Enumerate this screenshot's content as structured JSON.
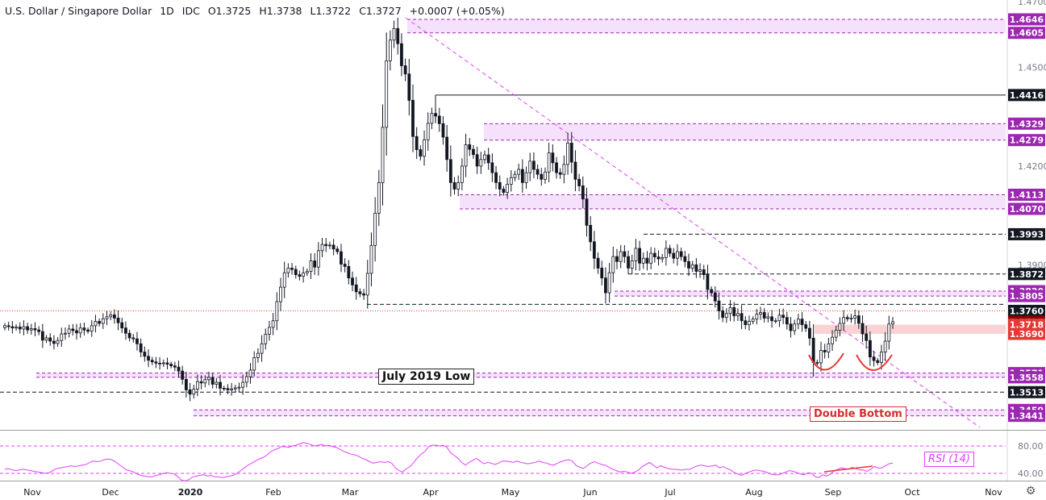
{
  "header": {
    "title": "U.S. Dollar / Singapore Dollar",
    "interval": "1D",
    "source": "IDC",
    "open": "O1.3725",
    "high": "H1.3738",
    "low": "L1.3722",
    "close": "C1.3727",
    "change": "+0.0007 (+0.05%)"
  },
  "chart_data": {
    "type": "candlestick",
    "price_axis": {
      "min": 1.34,
      "max": 1.47,
      "ticks": [
        "1.4700",
        "1.4500",
        "1.4200",
        "1.3900"
      ]
    },
    "time_axis": {
      "labels": [
        "Nov",
        "Dec",
        "2020",
        "Feb",
        "Mar",
        "Apr",
        "May",
        "Jun",
        "Jul",
        "Aug",
        "Sep",
        "Oct",
        "Nov"
      ]
    },
    "price_labels": [
      {
        "text": "1.4646",
        "value": 1.4646,
        "color": "#9c27b0"
      },
      {
        "text": "1.4605",
        "value": 1.4605,
        "color": "#9c27b0"
      },
      {
        "text": "1.4416",
        "value": 1.4416,
        "color": "#131722"
      },
      {
        "text": "1.4329",
        "value": 1.4329,
        "color": "#9c27b0"
      },
      {
        "text": "1.4279",
        "value": 1.4279,
        "color": "#9c27b0"
      },
      {
        "text": "1.4113",
        "value": 1.4113,
        "color": "#9c27b0"
      },
      {
        "text": "1.4070",
        "value": 1.407,
        "color": "#9c27b0"
      },
      {
        "text": "1.3993",
        "value": 1.3993,
        "color": "#131722"
      },
      {
        "text": "1.3872",
        "value": 1.3872,
        "color": "#131722"
      },
      {
        "text": "1.3820",
        "value": 1.382,
        "color": "#9c27b0"
      },
      {
        "text": "1.3805",
        "value": 1.3805,
        "color": "#9c27b0"
      },
      {
        "text": "1.3760",
        "value": 1.376,
        "color": "#131722"
      },
      {
        "text": "1.3727",
        "value": 1.3727,
        "color": "#8b0000"
      },
      {
        "text": "1.3718",
        "value": 1.3718,
        "color": "#e53935"
      },
      {
        "text": "1.3690",
        "value": 1.369,
        "color": "#e53935"
      },
      {
        "text": "1.3571",
        "value": 1.3571,
        "color": "#9c27b0"
      },
      {
        "text": "1.3558",
        "value": 1.3558,
        "color": "#9c27b0"
      },
      {
        "text": "1.3513",
        "value": 1.3513,
        "color": "#131722"
      },
      {
        "text": "1.3459",
        "value": 1.3459,
        "color": "#9c27b0"
      },
      {
        "text": "1.3441",
        "value": 1.3441,
        "color": "#9c27b0"
      }
    ],
    "closes": [
      1.3715,
      1.3712,
      1.3708,
      1.3711,
      1.3705,
      1.3712,
      1.3702,
      1.3706,
      1.3702,
      1.3697,
      1.3671,
      1.3678,
      1.3668,
      1.3661,
      1.367,
      1.369,
      1.3692,
      1.3705,
      1.37,
      1.3693,
      1.3708,
      1.3702,
      1.3698,
      1.3715,
      1.3728,
      1.3722,
      1.3736,
      1.3742,
      1.3748,
      1.3738,
      1.3724,
      1.3708,
      1.3692,
      1.3678,
      1.3675,
      1.366,
      1.3635,
      1.3622,
      1.361,
      1.3605,
      1.3601,
      1.36,
      1.3602,
      1.3598,
      1.3593,
      1.3589,
      1.3577,
      1.3552,
      1.352,
      1.3507,
      1.3522,
      1.3545,
      1.3541,
      1.3551,
      1.3558,
      1.3537,
      1.3543,
      1.3525,
      1.3524,
      1.352,
      1.3523,
      1.3526,
      1.3528,
      1.3543,
      1.356,
      1.358,
      1.3618,
      1.3631,
      1.366,
      1.3689,
      1.371,
      1.373,
      1.3788,
      1.3832,
      1.3876,
      1.389,
      1.3886,
      1.387,
      1.3865,
      1.3875,
      1.388,
      1.3912,
      1.3893,
      1.3943,
      1.3962,
      1.3958,
      1.396,
      1.3948,
      1.394,
      1.3902,
      1.3895,
      1.386,
      1.3839,
      1.3818,
      1.3812,
      1.3808,
      1.3874,
      1.3959,
      1.4057,
      1.415,
      1.4318,
      1.452,
      1.4583,
      1.4618,
      1.4572,
      1.4505,
      1.448,
      1.44,
      1.429,
      1.425,
      1.423,
      1.428,
      1.433,
      1.436,
      1.4352,
      1.4329,
      1.4288,
      1.422,
      1.415,
      1.413,
      1.415,
      1.42,
      1.4265,
      1.4251,
      1.4235,
      1.42,
      1.422,
      1.4234,
      1.421,
      1.418,
      1.415,
      1.413,
      1.412,
      1.4145,
      1.4165,
      1.4175,
      1.419,
      1.415,
      1.418,
      1.4215,
      1.419,
      1.4175,
      1.416,
      1.4182,
      1.424,
      1.421,
      1.418,
      1.4175,
      1.4205,
      1.427,
      1.4212,
      1.416,
      1.414,
      1.41,
      1.402,
      1.397,
      1.392,
      1.389,
      1.386,
      1.3815,
      1.3876,
      1.3925,
      1.391,
      1.394,
      1.3925,
      1.389,
      1.3912,
      1.395,
      1.3905,
      1.392,
      1.3905,
      1.3935,
      1.3924,
      1.3918,
      1.3922,
      1.395,
      1.3935,
      1.392,
      1.394,
      1.3925,
      1.391,
      1.389,
      1.39,
      1.388,
      1.3885,
      1.387,
      1.3825,
      1.3815,
      1.379,
      1.376,
      1.374,
      1.3752,
      1.377,
      1.3745,
      1.3752,
      1.373,
      1.3718,
      1.3728,
      1.3735,
      1.375,
      1.3755,
      1.3738,
      1.3742,
      1.373,
      1.373,
      1.3747,
      1.374,
      1.372,
      1.37,
      1.372,
      1.3735,
      1.3718,
      1.3707,
      1.3677,
      1.3603,
      1.3602,
      1.364,
      1.3635,
      1.366,
      1.368,
      1.3701,
      1.3722,
      1.374,
      1.3736,
      1.3738,
      1.3745,
      1.3722,
      1.369,
      1.367,
      1.362,
      1.3609,
      1.3603,
      1.3635,
      1.3668,
      1.372,
      1.3727
    ],
    "rsi": {
      "label": "RSI (14)",
      "levels": [
        80,
        40
      ],
      "tick_labels": [
        "80.00",
        "40.00"
      ],
      "values": [
        46,
        47,
        45,
        44,
        45,
        46,
        45,
        44,
        43,
        42,
        41,
        40,
        41,
        44,
        47,
        48,
        49,
        50,
        51,
        50,
        51,
        52,
        53,
        56,
        58,
        57,
        58,
        60,
        61,
        60,
        57,
        53,
        49,
        45,
        44,
        42,
        39,
        37,
        36,
        35,
        35,
        37,
        38,
        40,
        41,
        40,
        39,
        35,
        30,
        29,
        31,
        35,
        36,
        37,
        38,
        36,
        37,
        35,
        35,
        34,
        35,
        36,
        37,
        40,
        44,
        48,
        52,
        55,
        58,
        61,
        63,
        66,
        71,
        74,
        76,
        79,
        79,
        78,
        80,
        81,
        83,
        85,
        84,
        82,
        80,
        81,
        82,
        80,
        81,
        79,
        78,
        75,
        72,
        70,
        68,
        67,
        65,
        62,
        60,
        57,
        55,
        56,
        57,
        56,
        57,
        55,
        48,
        44,
        42,
        47,
        50,
        56,
        63,
        68,
        72,
        79,
        81,
        81,
        80,
        81,
        78,
        70,
        66,
        62,
        56,
        52,
        56,
        59,
        62,
        58,
        54,
        56,
        55,
        53,
        55,
        58,
        58,
        57,
        56,
        58,
        56,
        55,
        54,
        55,
        56,
        58,
        56,
        55,
        53,
        52,
        55,
        57,
        59,
        60,
        58,
        52,
        49,
        47,
        51,
        55,
        57,
        55,
        53,
        52,
        49,
        46,
        44,
        42,
        43,
        42,
        40,
        42,
        45,
        50,
        53,
        56,
        52,
        48,
        51,
        49,
        47,
        46,
        46,
        45,
        45,
        46,
        46,
        49,
        51,
        52,
        51,
        50,
        51,
        52,
        48,
        50,
        47,
        45,
        41,
        39,
        37,
        40,
        42,
        44,
        45,
        44,
        43,
        41,
        39,
        38,
        38,
        40,
        42,
        44,
        43,
        41,
        39,
        38,
        41,
        40,
        35,
        34,
        38,
        36,
        39,
        43,
        46,
        48,
        47,
        46,
        49,
        47,
        45,
        45,
        43,
        46,
        50,
        48,
        48,
        51,
        54,
        55
      ]
    },
    "annotations": [
      "July 2019 Low",
      "Double Bottom"
    ]
  },
  "colors": {
    "up": "#26a69a",
    "candle": "#131722",
    "zone_fill": "#f3dcfb",
    "zone_line": "#9c27b0",
    "trendline": "#e040fb",
    "red_zone": "#f8c8c8",
    "rsi_line": "#e040fb",
    "double_bottom": "#e53935"
  }
}
